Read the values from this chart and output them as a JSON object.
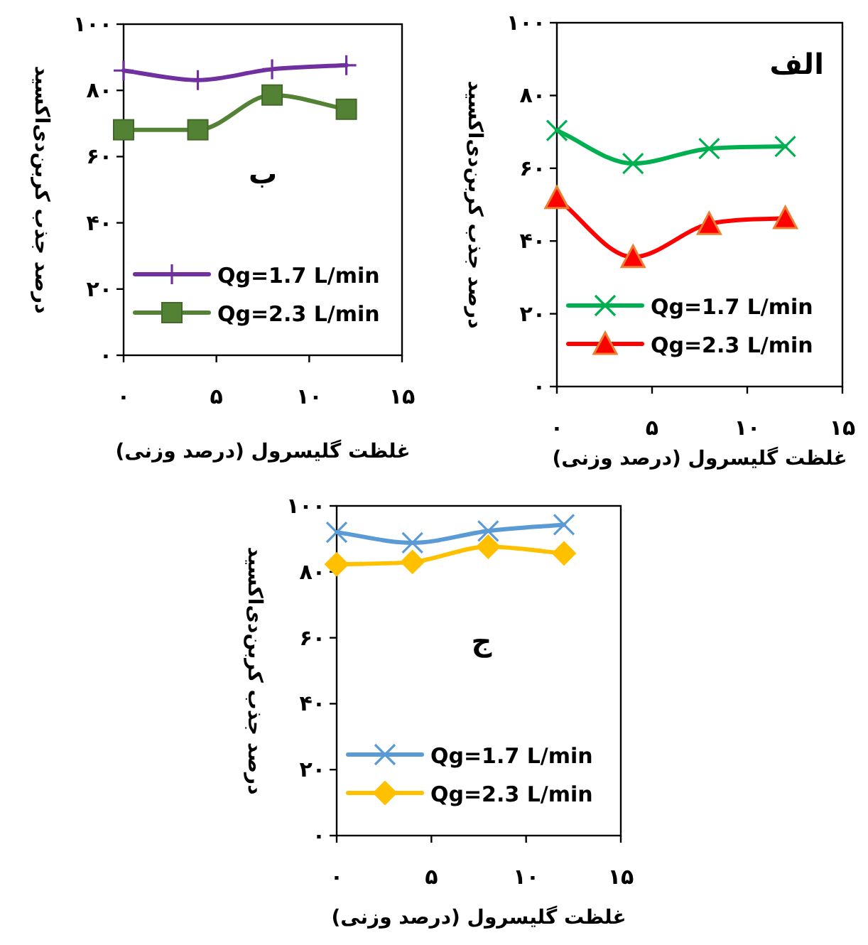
{
  "chart_data": [
    {
      "type": "line",
      "xlabel": "غلظت گلیسرول (درصد وزنی)",
      "ylabel": "درصد جذب کربن‌دی‌اکسید",
      "annotations": [
        "ب"
      ],
      "x": [
        0,
        4,
        8,
        12
      ],
      "xlim": [
        0,
        15
      ],
      "ylim": [
        0,
        100
      ],
      "xticks": [
        {
          "value": 0,
          "label": "۰"
        },
        {
          "value": 5,
          "label": "۵"
        },
        {
          "value": 10,
          "label": "۱۰"
        },
        {
          "value": 15,
          "label": "۱۵"
        }
      ],
      "yticks": [
        {
          "value": 0,
          "label": "۰"
        },
        {
          "value": 20,
          "label": "۲۰"
        },
        {
          "value": 40,
          "label": "۴۰"
        },
        {
          "value": 60,
          "label": "۶۰"
        },
        {
          "value": 80,
          "label": "۸۰"
        },
        {
          "value": 100,
          "label": "۱۰۰"
        }
      ],
      "legend": "bottom right",
      "grid": false,
      "series": [
        {
          "name": "Qg=1.7 L/min",
          "color": "#7030a0",
          "marker": "plus",
          "values": [
            86,
            83.1,
            86.4,
            87.6
          ]
        },
        {
          "name": "Qg=2.3 L/min",
          "color": "#548235",
          "marker": "square",
          "values": [
            68.1,
            68.1,
            78.6,
            74.3
          ]
        }
      ]
    },
    {
      "type": "line",
      "xlabel": "غلظت گلیسرول (درصد وزنی)",
      "ylabel": "درصد جذب کربن‌دی‌اکسید",
      "annotations": [
        "الف"
      ],
      "x": [
        0,
        4,
        8,
        12
      ],
      "xlim": [
        0,
        15
      ],
      "ylim": [
        0,
        100
      ],
      "xticks": [
        {
          "value": 0,
          "label": "۰"
        },
        {
          "value": 5,
          "label": "۵"
        },
        {
          "value": 10,
          "label": "۱۰"
        },
        {
          "value": 15,
          "label": "۱۵"
        }
      ],
      "yticks": [
        {
          "value": 0,
          "label": "۰"
        },
        {
          "value": 20,
          "label": "۲۰"
        },
        {
          "value": 40,
          "label": "۴۰"
        },
        {
          "value": 60,
          "label": "۶۰"
        },
        {
          "value": 80,
          "label": "۸۰"
        },
        {
          "value": 100,
          "label": "۱۰۰"
        }
      ],
      "legend": "bottom right",
      "grid": false,
      "series": [
        {
          "name": "Qg=1.7 L/min",
          "color": "#00b050",
          "marker": "cross",
          "values": [
            70.4,
            61.3,
            65.4,
            66
          ]
        },
        {
          "name": "Qg=2.3 L/min",
          "color": "#ff0000",
          "marker": "triangle",
          "values": [
            51.8,
            35.6,
            44.7,
            46.3
          ]
        }
      ]
    },
    {
      "type": "line",
      "xlabel": "غلظت گلیسرول (درصد وزنی)",
      "ylabel": "درصد جذب کربن‌دی‌اکسید",
      "annotations": [
        "ج"
      ],
      "x": [
        0,
        4,
        8,
        12
      ],
      "xlim": [
        0,
        15
      ],
      "ylim": [
        0,
        100
      ],
      "xticks": [
        {
          "value": 0,
          "label": "۰"
        },
        {
          "value": 5,
          "label": "۵"
        },
        {
          "value": 10,
          "label": "۱۰"
        },
        {
          "value": 15,
          "label": "۱۵"
        }
      ],
      "yticks": [
        {
          "value": 0,
          "label": "۰"
        },
        {
          "value": 20,
          "label": "۲۰"
        },
        {
          "value": 40,
          "label": "۴۰"
        },
        {
          "value": 60,
          "label": "۶۰"
        },
        {
          "value": 80,
          "label": "۸۰"
        },
        {
          "value": 100,
          "label": "۱۰۰"
        }
      ],
      "legend": "bottom right",
      "grid": false,
      "series": [
        {
          "name": "Qg=1.7 L/min",
          "color": "#5b9bd5",
          "marker": "cross",
          "values": [
            92,
            88.8,
            92.4,
            94.3
          ]
        },
        {
          "name": "Qg=2.3 L/min",
          "color": "#ffc000",
          "marker": "diamond",
          "values": [
            82.3,
            83,
            87.6,
            85.6
          ]
        }
      ]
    }
  ]
}
